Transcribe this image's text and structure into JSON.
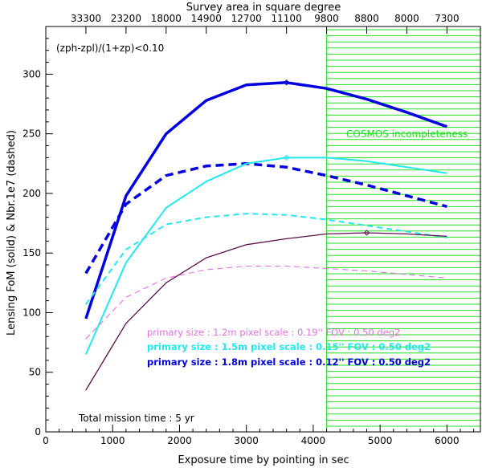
{
  "chart_data": {
    "type": "line",
    "xlabel": "Exposure time by pointing in sec",
    "ylabel": "Lensing FoM (solid) & Nbr.1e7 (dashed)",
    "top_axis_label": "Survey area in square degree",
    "xlim": [
      0,
      6500
    ],
    "ylim": [
      0,
      340
    ],
    "x_ticks": [
      0,
      1000,
      2000,
      3000,
      4000,
      5000,
      6000
    ],
    "y_ticks": [
      0,
      50,
      100,
      150,
      200,
      250,
      300
    ],
    "top_ticks": [
      {
        "x": 600,
        "label": "33300"
      },
      {
        "x": 1200,
        "label": "23200"
      },
      {
        "x": 1800,
        "label": "18000"
      },
      {
        "x": 2400,
        "label": "14900"
      },
      {
        "x": 3000,
        "label": "12700"
      },
      {
        "x": 3600,
        "label": "11100"
      },
      {
        "x": 4200,
        "label": "9800"
      },
      {
        "x": 4800,
        "label": "8800"
      },
      {
        "x": 5400,
        "label": "8000"
      },
      {
        "x": 6000,
        "label": "7300"
      }
    ],
    "x": [
      600,
      1200,
      1800,
      2400,
      3000,
      3600,
      4200,
      4800,
      5400,
      6000
    ],
    "series": [
      {
        "name": "FoM 1.8m",
        "style": "solid",
        "color": "#0000dd",
        "width": 3.5,
        "values": [
          95,
          198,
          250,
          278,
          291,
          293,
          288,
          279,
          268,
          256
        ],
        "marker_x": 3600,
        "marker_y": 293
      },
      {
        "name": "Nbr 1.8m",
        "style": "dashed",
        "color": "#0000dd",
        "width": 3.5,
        "values": [
          133,
          191,
          215,
          223,
          225,
          222,
          215,
          207,
          198,
          189
        ]
      },
      {
        "name": "FoM 1.5m",
        "style": "solid",
        "color": "#22e8ee",
        "width": 2,
        "values": [
          65,
          142,
          188,
          210,
          225,
          230,
          230,
          227,
          222,
          217
        ],
        "marker_x": 3600,
        "marker_y": 230
      },
      {
        "name": "Nbr 1.5m",
        "style": "dashed",
        "color": "#22e8ee",
        "width": 2,
        "values": [
          107,
          153,
          174,
          180,
          183,
          182,
          178,
          173,
          168,
          163
        ]
      },
      {
        "name": "FoM 1.2m",
        "style": "solid",
        "color": "#5a0f4a",
        "width": 1.3,
        "values": [
          35,
          91,
          125,
          146,
          157,
          162,
          166,
          167,
          166,
          164
        ],
        "marker_x": 4800,
        "marker_y": 167
      },
      {
        "name": "Nbr 1.2m",
        "style": "dashed",
        "color": "#e070e0",
        "width": 1.1,
        "values": [
          78,
          113,
          129,
          136,
          139,
          139,
          137,
          135,
          132,
          129
        ]
      }
    ],
    "annotations": {
      "criterion": "(zph-zpl)/(1+zp)<0.10",
      "cosmos": "COSMOS incompleteness",
      "mission": "Total mission time : 5 yr",
      "legend": [
        {
          "text": "primary size : 1.2m pixel scale : 0.19'' FOV : 0.50 deg2",
          "color": "#e070e0"
        },
        {
          "text": "primary size : 1.5m pixel scale : 0.15'' FOV : 0.50 deg2",
          "color": "#22e8ee"
        },
        {
          "text": "primary size : 1.8m pixel scale : 0.12'' FOV : 0.50 deg2",
          "color": "#0000dd"
        }
      ]
    },
    "shaded_region": {
      "x_start": 4200,
      "color": "#22dd22"
    }
  }
}
